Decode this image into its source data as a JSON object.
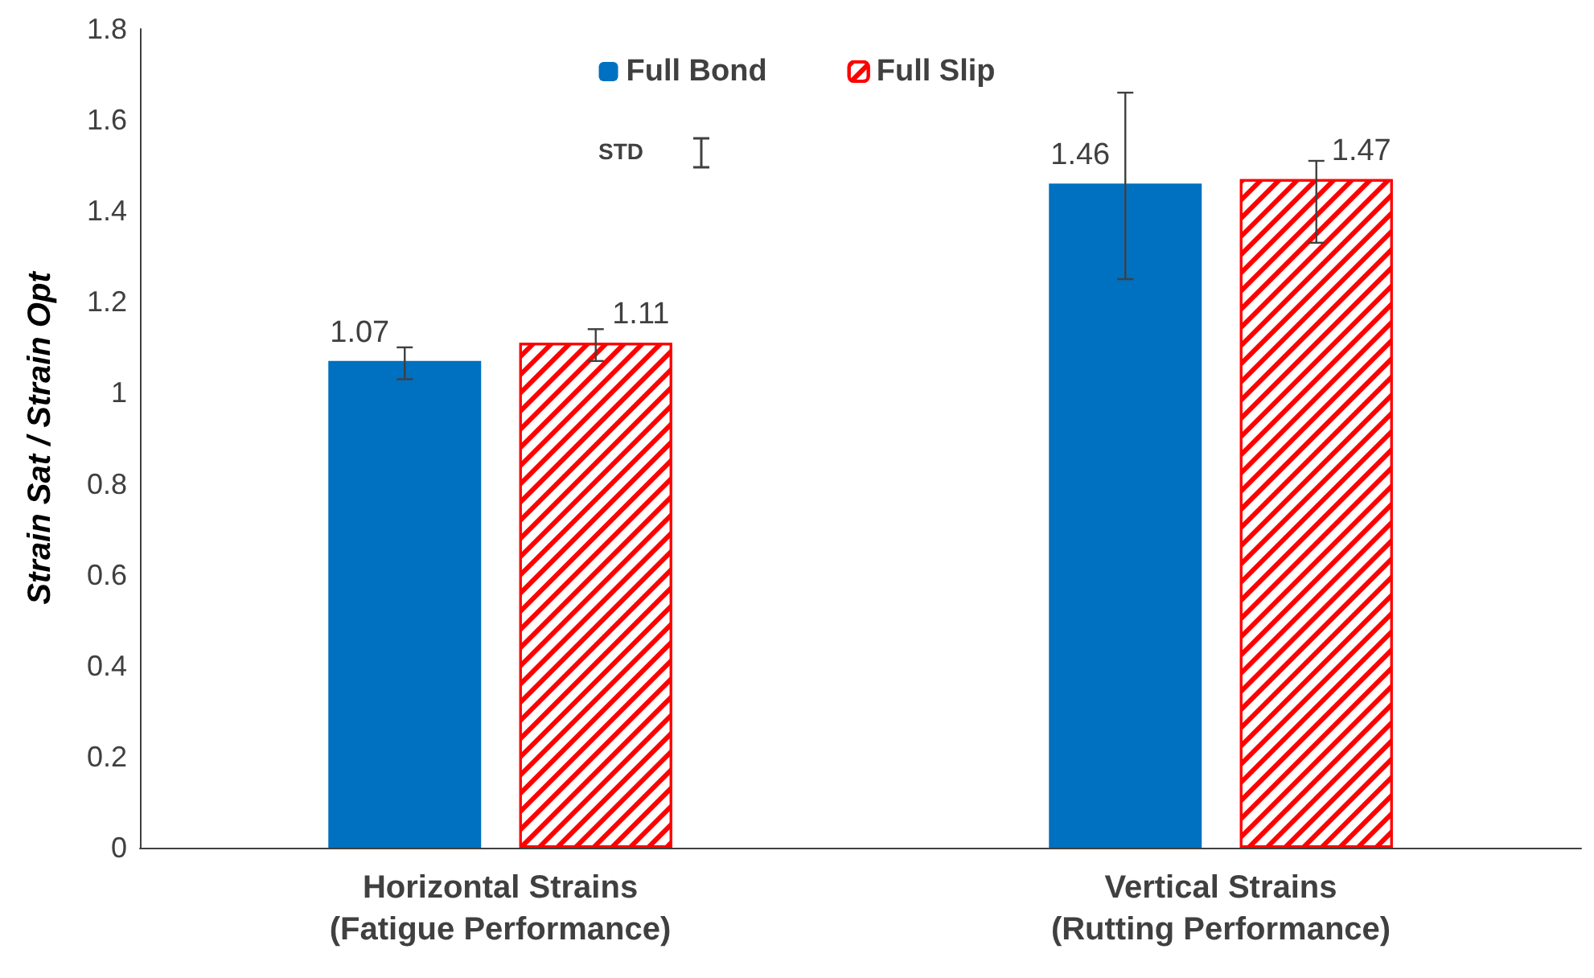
{
  "chart_data": {
    "type": "bar",
    "ylabel": "Strain Sat / Strain Opt",
    "categories": [
      "Horizontal Strains\n(Fatigue Performance)",
      "Vertical Strains\n(Rutting Performance)"
    ],
    "series": [
      {
        "name": "Full Bond",
        "color": "#0070c0",
        "values": [
          1.07,
          1.46
        ],
        "errors": [
          [
            1.03,
            1.1
          ],
          [
            1.25,
            1.66
          ]
        ]
      },
      {
        "name": "Full Slip",
        "color": "#ff0000",
        "values": [
          1.11,
          1.47
        ],
        "errors": [
          [
            1.07,
            1.14
          ],
          [
            1.33,
            1.51
          ]
        ]
      }
    ],
    "annotations": [
      "STD"
    ],
    "data_labels": true,
    "ylim": [
      0,
      1.8
    ],
    "yticks": [
      0,
      0.2,
      0.4,
      0.6,
      0.8,
      1,
      1.2,
      1.4,
      1.6,
      1.8
    ],
    "grid": false,
    "legend": "top"
  }
}
